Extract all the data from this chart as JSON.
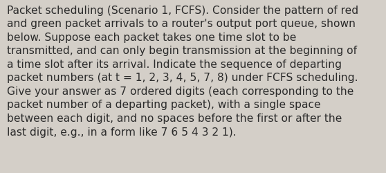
{
  "text": "Packet scheduling (Scenario 1, FCFS). Consider the pattern of red\nand green packet arrivals to a router's output port queue, shown\nbelow. Suppose each packet takes one time slot to be\ntransmitted, and can only begin transmission at the beginning of\na time slot after its arrival. Indicate the sequence of departing\npacket numbers (at t = 1, 2, 3, 4, 5, 7, 8) under FCFS scheduling.\nGive your answer as 7 ordered digits (each corresponding to the\npacket number of a departing packet), with a single space\nbetween each digit, and no spaces before the first or after the\nlast digit, e.g., in a form like 7 6 5 4 3 2 1).",
  "background_color": "#d4cfc8",
  "text_color": "#2b2b2b",
  "font_size": 11.2,
  "fig_width": 5.58,
  "fig_height": 2.51,
  "dpi": 100
}
